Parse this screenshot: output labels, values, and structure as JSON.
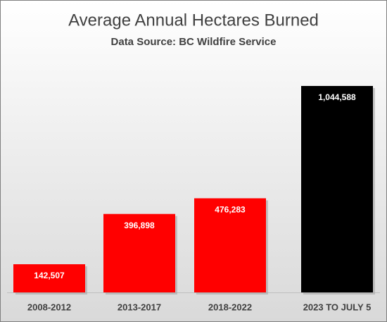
{
  "chart_data": {
    "type": "bar",
    "title": "Average Annual Hectares Burned",
    "subtitle": "Data Source: BC Wildfire Service",
    "categories": [
      "2008-2012",
      "2013-2017",
      "2018-2022",
      "2023 TO JULY 5"
    ],
    "values": [
      142507,
      396898,
      476283,
      1044588
    ],
    "value_labels": [
      "142,507",
      "396,898",
      "476,283",
      "1,044,588"
    ],
    "colors": [
      "#ff0000",
      "#ff0000",
      "#ff0000",
      "#000000"
    ]
  }
}
